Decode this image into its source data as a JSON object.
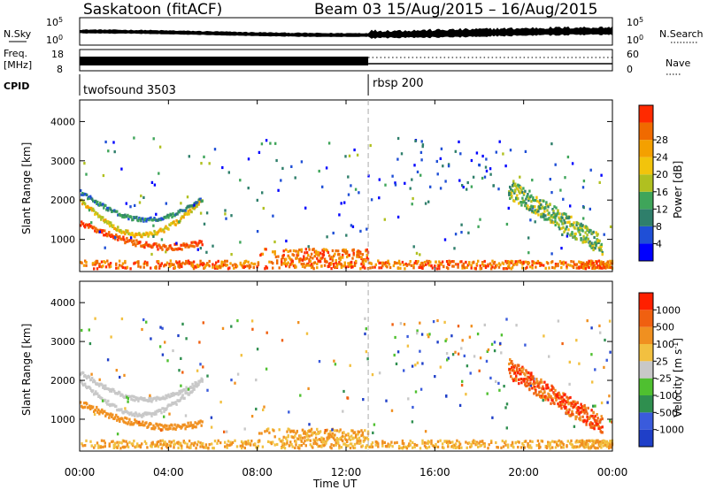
{
  "header": {
    "station": "Saskatoon (fitACF)",
    "beam": "Beam 03",
    "date_range": "15/Aug/2015 – 16/Aug/2015"
  },
  "top_strip": {
    "left_label": "N.Sky",
    "left_ticks": [
      "10^5",
      "10^0"
    ],
    "right_label": "N.Search",
    "right_ticks": [
      "10^5",
      "10^0"
    ]
  },
  "freq_strip": {
    "left_label_1": "Freq.",
    "left_label_2": "[MHz]",
    "left_ticks": [
      "18",
      "8"
    ],
    "right_label": "Nave",
    "right_ticks": [
      "60",
      "0"
    ]
  },
  "cpid": {
    "label": "CPID",
    "mode_1": "twofsound 3503",
    "mode_2": "rbsp 200",
    "switch_hour": 13.0
  },
  "x_axis": {
    "label": "Time UT",
    "ticks": [
      "00:00",
      "04:00",
      "08:00",
      "12:00",
      "16:00",
      "20:00",
      "00:00"
    ]
  },
  "chart_data": [
    {
      "type": "heatmap",
      "name": "power",
      "ylabel": "Slant Range [km]",
      "xlim": [
        0,
        24
      ],
      "ylim": [
        180,
        4550
      ],
      "yticks": [
        "1000",
        "2000",
        "3000",
        "4000"
      ],
      "colorbar": {
        "label": "Power [dB]",
        "ticks": [
          "4",
          "8",
          "12",
          "16",
          "20",
          "24",
          "28"
        ],
        "colors": [
          "#0000ff",
          "#1f4fd6",
          "#2f7f6b",
          "#3fa55a",
          "#b0c020",
          "#f2c40c",
          "#f4a000",
          "#f06a00",
          "#ff2a00"
        ]
      }
    },
    {
      "type": "heatmap",
      "name": "velocity",
      "ylabel": "Slant Range [km]",
      "xlim": [
        0,
        24
      ],
      "ylim": [
        180,
        4550
      ],
      "yticks": [
        "1000",
        "2000",
        "3000",
        "4000"
      ],
      "colorbar": {
        "label": "Velocity [m s^-1]",
        "ticks": [
          "1000",
          "500",
          "100",
          "25",
          "-25",
          "-100",
          "-500",
          "-1000"
        ],
        "colors": [
          "#1f3fc8",
          "#3a5bdc",
          "#2f8f4f",
          "#4fc030",
          "#c8c8c8",
          "#f2c040",
          "#f09020",
          "#f06010",
          "#ff2000"
        ]
      }
    }
  ]
}
